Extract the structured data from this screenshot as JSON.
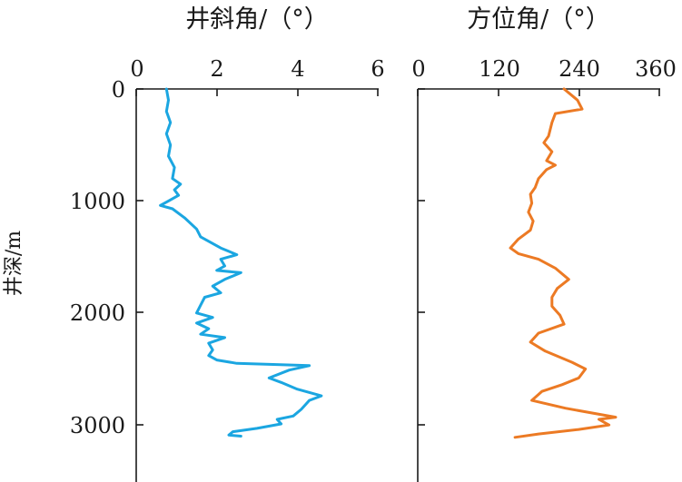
{
  "chart_data": [
    {
      "type": "line",
      "title": "井斜角/（°）",
      "ylabel": "井深/m",
      "xlim": [
        0,
        6
      ],
      "x_ticks": [
        "0",
        "2",
        "4",
        "6"
      ],
      "ylim": [
        0,
        3500
      ],
      "y_ticks": [
        "0",
        "1000",
        "2000",
        "3000"
      ],
      "y_inverted": true,
      "x_axis_position": "top",
      "color": "#1ba6e1",
      "series": [
        {
          "points": [
            [
              0.75,
              0
            ],
            [
              0.8,
              100
            ],
            [
              0.75,
              200
            ],
            [
              0.85,
              300
            ],
            [
              0.75,
              400
            ],
            [
              0.85,
              500
            ],
            [
              0.8,
              600
            ],
            [
              0.95,
              700
            ],
            [
              0.9,
              800
            ],
            [
              1.1,
              850
            ],
            [
              0.95,
              900
            ],
            [
              1.05,
              950
            ],
            [
              0.8,
              1000
            ],
            [
              0.6,
              1040
            ],
            [
              0.9,
              1070
            ],
            [
              1.2,
              1150
            ],
            [
              1.5,
              1250
            ],
            [
              1.6,
              1320
            ],
            [
              2.1,
              1420
            ],
            [
              2.5,
              1480
            ],
            [
              2.1,
              1520
            ],
            [
              2.2,
              1580
            ],
            [
              2.0,
              1620
            ],
            [
              2.6,
              1640
            ],
            [
              2.2,
              1700
            ],
            [
              1.9,
              1760
            ],
            [
              2.1,
              1820
            ],
            [
              1.7,
              1860
            ],
            [
              1.6,
              1930
            ],
            [
              1.5,
              2000
            ],
            [
              1.9,
              2040
            ],
            [
              1.5,
              2090
            ],
            [
              1.8,
              2140
            ],
            [
              1.6,
              2190
            ],
            [
              2.2,
              2220
            ],
            [
              1.8,
              2270
            ],
            [
              1.9,
              2330
            ],
            [
              1.8,
              2380
            ],
            [
              2.0,
              2420
            ],
            [
              2.5,
              2450
            ],
            [
              4.3,
              2470
            ],
            [
              3.8,
              2510
            ],
            [
              3.3,
              2580
            ],
            [
              3.6,
              2620
            ],
            [
              4.0,
              2680
            ],
            [
              4.6,
              2740
            ],
            [
              4.3,
              2780
            ],
            [
              4.1,
              2860
            ],
            [
              3.9,
              2920
            ],
            [
              3.5,
              2950
            ],
            [
              3.6,
              2990
            ],
            [
              3.0,
              3030
            ],
            [
              2.4,
              3060
            ],
            [
              2.3,
              3090
            ],
            [
              2.6,
              3100
            ]
          ]
        }
      ]
    },
    {
      "type": "line",
      "title": "方位角/（°）",
      "xlim": [
        0,
        360
      ],
      "x_ticks": [
        "0",
        "120",
        "240",
        "360"
      ],
      "ylim": [
        0,
        3500
      ],
      "y_inverted": true,
      "x_axis_position": "top",
      "color": "#ec7a24",
      "series": [
        {
          "points": [
            [
              218,
              0
            ],
            [
              238,
              100
            ],
            [
              245,
              180
            ],
            [
              205,
              220
            ],
            [
              200,
              300
            ],
            [
              195,
              420
            ],
            [
              188,
              480
            ],
            [
              200,
              560
            ],
            [
              192,
              640
            ],
            [
              205,
              680
            ],
            [
              192,
              720
            ],
            [
              180,
              800
            ],
            [
              175,
              880
            ],
            [
              168,
              940
            ],
            [
              170,
              1020
            ],
            [
              165,
              1100
            ],
            [
              172,
              1180
            ],
            [
              168,
              1260
            ],
            [
              150,
              1340
            ],
            [
              138,
              1420
            ],
            [
              150,
              1470
            ],
            [
              180,
              1520
            ],
            [
              205,
              1600
            ],
            [
              225,
              1700
            ],
            [
              208,
              1780
            ],
            [
              200,
              1860
            ],
            [
              200,
              1940
            ],
            [
              212,
              2020
            ],
            [
              218,
              2100
            ],
            [
              180,
              2180
            ],
            [
              168,
              2260
            ],
            [
              190,
              2340
            ],
            [
              230,
              2440
            ],
            [
              250,
              2500
            ],
            [
              240,
              2580
            ],
            [
              215,
              2640
            ],
            [
              185,
              2700
            ],
            [
              170,
              2780
            ],
            [
              220,
              2850
            ],
            [
              295,
              2930
            ],
            [
              270,
              2950
            ],
            [
              285,
              3000
            ],
            [
              240,
              3040
            ],
            [
              180,
              3080
            ],
            [
              145,
              3110
            ]
          ]
        }
      ]
    }
  ]
}
